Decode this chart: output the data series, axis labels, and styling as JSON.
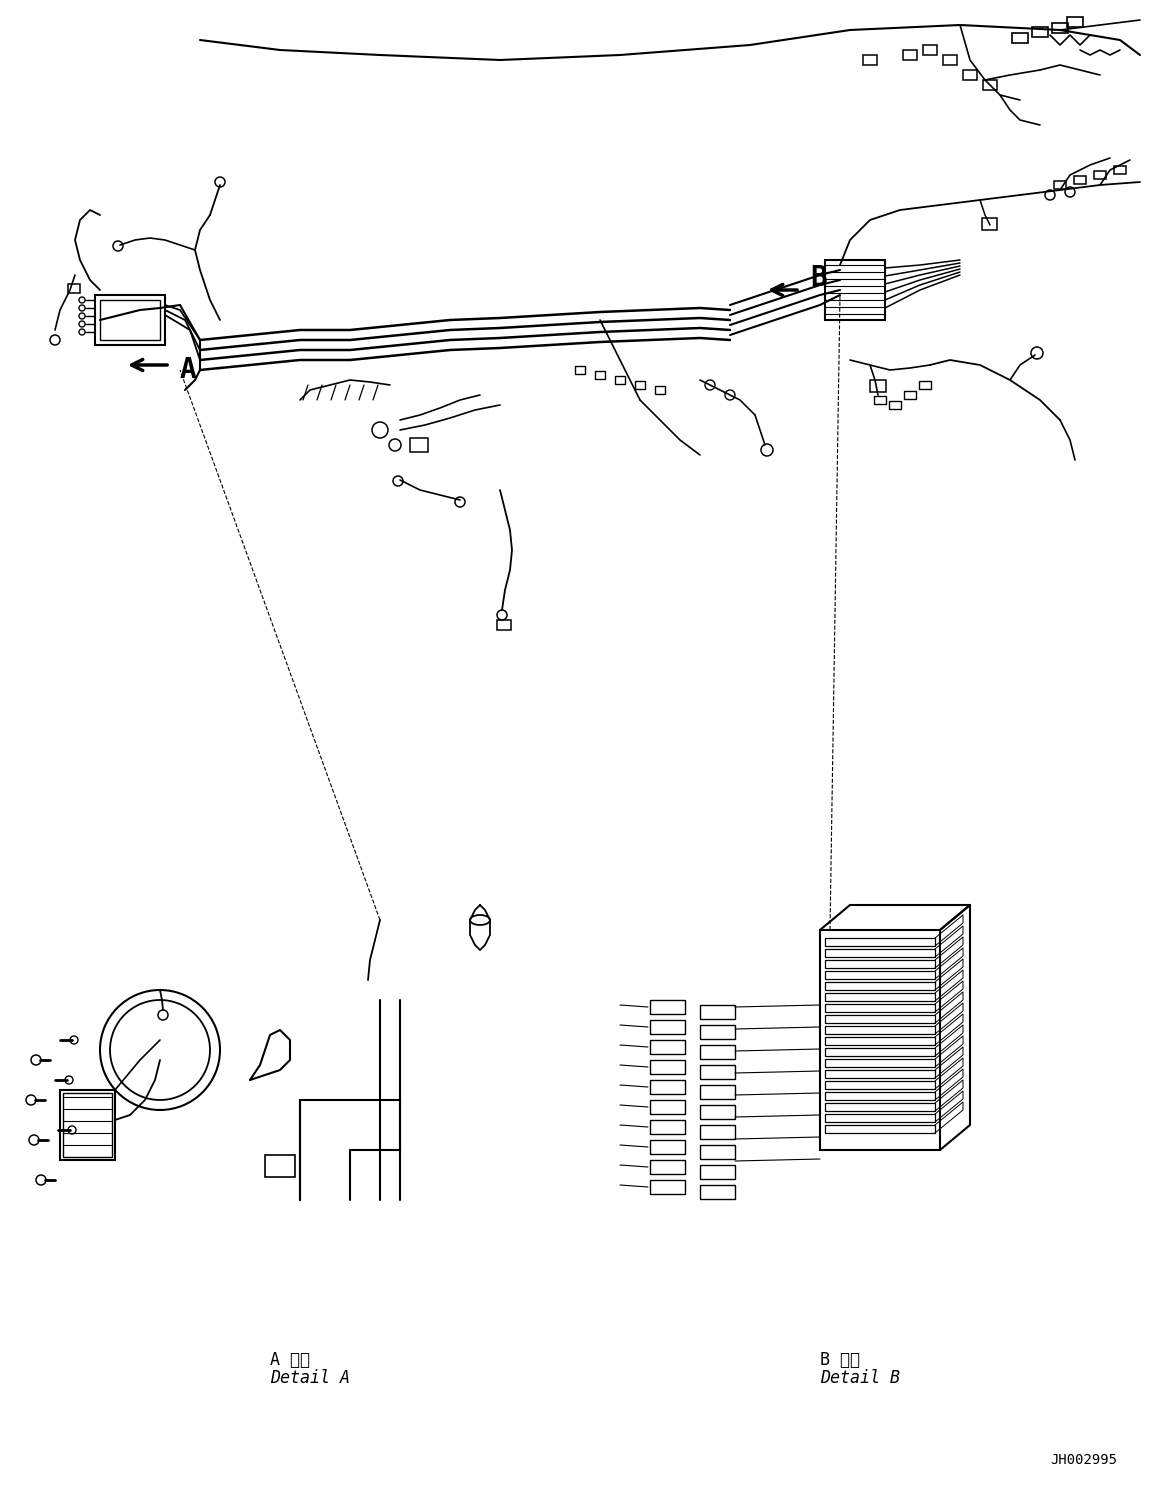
{
  "bg_color": "#ffffff",
  "line_color": "#000000",
  "figsize": [
    11.63,
    14.88
  ],
  "dpi": 100,
  "label_A": "A",
  "label_B": "B",
  "detail_A_jp": "A 詳細",
  "detail_A_en": "Detail A",
  "detail_B_jp": "B 詳細",
  "detail_B_en": "Detail B",
  "ref_code": "JH002995",
  "title_fontsize": 11,
  "label_fontsize": 20,
  "detail_fontsize": 12,
  "ref_fontsize": 10
}
